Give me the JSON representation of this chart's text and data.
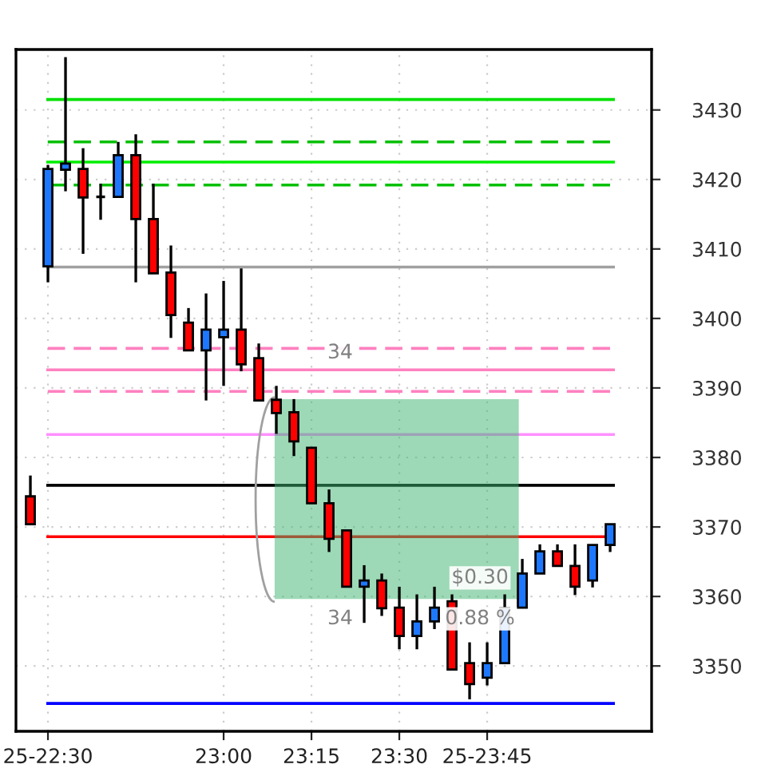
{
  "chart_data": {
    "type": "candlestick",
    "x": [
      22.45,
      22.5,
      22.55,
      22.6,
      22.65,
      22.7,
      22.75,
      22.8,
      22.85,
      22.9,
      22.95,
      23.0,
      23.05,
      23.1,
      23.15,
      23.2,
      23.25,
      23.3,
      23.35,
      23.4,
      23.45,
      23.5,
      23.55,
      23.6,
      23.65,
      23.7,
      23.75,
      23.8,
      23.85,
      23.9,
      23.95,
      24.0,
      24.05,
      24.1
    ],
    "ohlc": [
      [
        3374.4,
        3377.4,
        3370.4,
        3370.4
      ],
      [
        3407.5,
        3422.1,
        3405.2,
        3421.5
      ],
      [
        3421.4,
        3437.6,
        3418.3,
        3422.3
      ],
      [
        3421.5,
        3424.5,
        3409.3,
        3417.4
      ],
      [
        3417.5,
        3419.4,
        3414.2,
        3417.5
      ],
      [
        3417.5,
        3425.4,
        3417.5,
        3423.5
      ],
      [
        3423.5,
        3426.5,
        3405.2,
        3414.3
      ],
      [
        3414.3,
        3419.4,
        3406.5,
        3406.5
      ],
      [
        3406.6,
        3410.5,
        3397.2,
        3400.5
      ],
      [
        3399.4,
        3401.5,
        3395.4,
        3395.4
      ],
      [
        3395.4,
        3403.6,
        3388.2,
        3398.4
      ],
      [
        3397.3,
        3405.4,
        3390.3,
        3398.4
      ],
      [
        3398.4,
        3407.2,
        3392.4,
        3393.4
      ],
      [
        3394.3,
        3396.4,
        3388.2,
        3388.2
      ],
      [
        3388.3,
        3390.3,
        3383.4,
        3386.4
      ],
      [
        3386.5,
        3388.4,
        3380.2,
        3382.3
      ],
      [
        3381.4,
        3381.4,
        3373.4,
        3373.4
      ],
      [
        3373.4,
        3375.4,
        3366.4,
        3368.3
      ],
      [
        3369.5,
        3369.5,
        3361.4,
        3361.4
      ],
      [
        3361.4,
        3364.5,
        3356.2,
        3362.3
      ],
      [
        3362.3,
        3363.3,
        3357.2,
        3358.3
      ],
      [
        3358.4,
        3361.4,
        3352.4,
        3354.3
      ],
      [
        3354.3,
        3360.3,
        3352.4,
        3356.4
      ],
      [
        3356.4,
        3361.4,
        3355.3,
        3358.4
      ],
      [
        3359.3,
        3360.3,
        3349.5,
        3349.5
      ],
      [
        3350.4,
        3353.4,
        3345.2,
        3347.4
      ],
      [
        3348.3,
        3353.4,
        3347.2,
        3350.4
      ],
      [
        3350.4,
        3360.3,
        3350.4,
        3358.3
      ],
      [
        3358.4,
        3365.4,
        3358.4,
        3363.3
      ],
      [
        3363.3,
        3367.5,
        3363.3,
        3366.5
      ],
      [
        3366.5,
        3367.5,
        3364.4,
        3364.4
      ],
      [
        3364.4,
        3367.5,
        3360.2,
        3361.4
      ],
      [
        3362.3,
        3367.4,
        3361.3,
        3367.4
      ],
      [
        3367.4,
        3370.4,
        3366.4,
        3370.4
      ]
    ],
    "colors": [
      "#ff0000",
      "#1e78ff",
      "#1e78ff",
      "#ff0000",
      "#000000",
      "#1e78ff",
      "#ff0000",
      "#ff0000",
      "#ff0000",
      "#ff0000",
      "#1e78ff",
      "#1e78ff",
      "#ff0000",
      "#ff0000",
      "#ff0000",
      "#ff0000",
      "#ff0000",
      "#ff0000",
      "#ff0000",
      "#1e78ff",
      "#ff0000",
      "#ff0000",
      "#1e78ff",
      "#1e78ff",
      "#ff0000",
      "#ff0000",
      "#1e78ff",
      "#1e78ff",
      "#1e78ff",
      "#1e78ff",
      "#ff0000",
      "#ff0000",
      "#1e78ff",
      "#1e78ff"
    ],
    "xlim": [
      22.409,
      24.218
    ],
    "xticks": [
      {
        "value": 22.5,
        "label": "25-22:30"
      },
      {
        "value": 23.0,
        "label": "23:00"
      },
      {
        "value": 23.25,
        "label": "23:15"
      },
      {
        "value": 23.5,
        "label": "23:30"
      },
      {
        "value": 23.75,
        "label": "25-23:45"
      }
    ],
    "ylim": [
      3340.6,
      3438.7
    ],
    "yticks": [
      3350,
      3360,
      3370,
      3380,
      3390,
      3400,
      3410,
      3420,
      3430
    ],
    "grid": true,
    "ref_lines": [
      {
        "axis": "y",
        "value": 3431.5,
        "color": "#00e000",
        "line_style": "solid"
      },
      {
        "axis": "y",
        "value": 3425.4,
        "color": "#00c000",
        "line_style": "dashed"
      },
      {
        "axis": "y",
        "value": 3422.5,
        "color": "#00ee00",
        "line_style": "solid"
      },
      {
        "axis": "y",
        "value": 3419.2,
        "color": "#00c000",
        "line_style": "dashed"
      },
      {
        "axis": "y",
        "value": 3407.4,
        "color": "#a0a0a0",
        "line_style": "solid"
      },
      {
        "axis": "y",
        "value": 3395.7,
        "color": "#ff80c0",
        "line_style": "dashed"
      },
      {
        "axis": "y",
        "value": 3392.6,
        "color": "#ff80c0",
        "line_style": "solid"
      },
      {
        "axis": "y",
        "value": 3389.5,
        "color": "#ff80c0",
        "line_style": "dashed"
      },
      {
        "axis": "y",
        "value": 3383.3,
        "color": "#ff90ff",
        "line_style": "solid"
      },
      {
        "axis": "y",
        "value": 3376.0,
        "color": "#000000",
        "line_style": "solid"
      },
      {
        "axis": "y",
        "value": 3368.6,
        "color": "#ff0000",
        "line_style": "solid"
      },
      {
        "axis": "y",
        "value": 3344.6,
        "color": "#0000ff",
        "line_style": "solid"
      }
    ],
    "annotations": [
      "34",
      "34",
      "$0.30",
      "0.88 %"
    ]
  }
}
